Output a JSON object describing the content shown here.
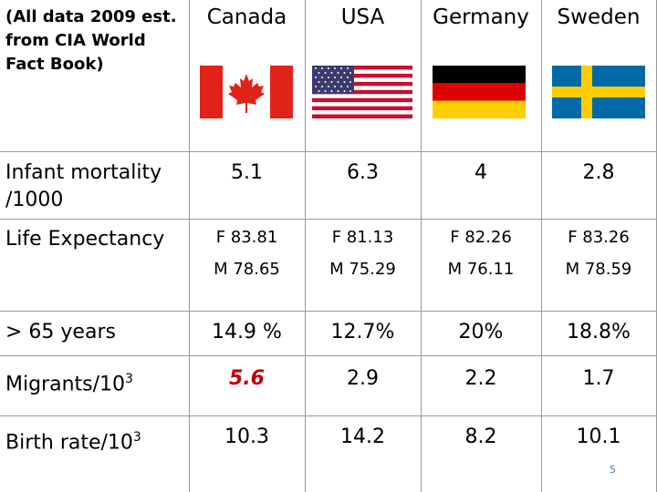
{
  "header_note": [
    "(All data 2009 est.",
    "from CIA World",
    "Fact Book)"
  ],
  "countries": [
    {
      "name": "Canada",
      "flag": "canada-flag"
    },
    {
      "name": "USA",
      "flag": "usa-flag"
    },
    {
      "name": "Germany",
      "flag": "germany-flag"
    },
    {
      "name": "Sweden",
      "flag": "sweden-flag"
    }
  ],
  "rows": {
    "infant_mortality": {
      "label_lines": [
        "Infant mortality",
        "/1000"
      ],
      "values": [
        "5.1",
        "6.3",
        "4",
        "2.8"
      ]
    },
    "life_expectancy": {
      "label": "Life Expectancy",
      "female": [
        "F   83.81",
        "F   81.13",
        "F 82.26",
        "F 83.26"
      ],
      "male": [
        "M  78.65",
        "M  75.29",
        "M 76.11",
        "M 78.59"
      ]
    },
    "over_65": {
      "label": "> 65 years",
      "values": [
        "14.9 %",
        "12.7%",
        "20%",
        "18.8%"
      ]
    },
    "migrants": {
      "label": "Migrants/10",
      "label_sup": "3",
      "values": [
        "5.6",
        "2.9",
        "2.2",
        "1.7"
      ],
      "highlight_color": "#c00000"
    },
    "birth_rate": {
      "label": "Birth rate/10",
      "label_sup": "3",
      "values": [
        "10.3",
        "14.2",
        "8.2",
        "10.1"
      ]
    }
  },
  "slide_number": "5",
  "colors": {
    "canada_red": "#e2231a",
    "usa_red": "#c8102e",
    "usa_blue": "#3c3b6e",
    "germany_black": "#000000",
    "germany_red": "#dd0000",
    "germany_gold": "#ffce00",
    "sweden_blue": "#006aa7",
    "sweden_yellow": "#fecc00"
  }
}
